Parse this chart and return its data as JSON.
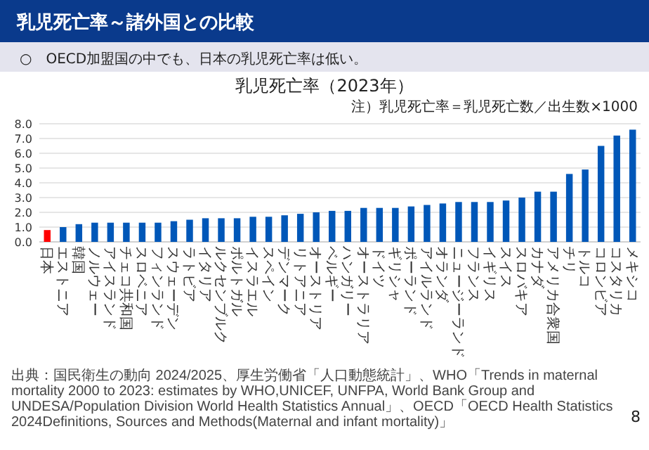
{
  "chart_data": {
    "type": "bar",
    "title": "乳児死亡率（2023年）",
    "categories": [
      "日本",
      "エストニア",
      "韓国",
      "ノルウェー",
      "アイスランド",
      "チェコ共和国",
      "スロベニア",
      "フィンランド",
      "スウェーデン",
      "ラトビア",
      "イタリア",
      "ルクセンブルク",
      "ポルトガル",
      "イスラエル",
      "スペイン",
      "デンマーク",
      "リトアニア",
      "オーストリア",
      "ベルギー",
      "ハンガリー",
      "オーストラリア",
      "ドイツ",
      "ギリシャ",
      "ポーランド",
      "アイルランド",
      "オランダ",
      "ニュージーランド",
      "フランス",
      "イギリス",
      "スイス",
      "スロバキア",
      "カナダ",
      "アメリカ合衆国",
      "チリ",
      "トルコ",
      "コロンビア",
      "コスタリカ",
      "メキシコ"
    ],
    "values": [
      0.8,
      1.0,
      1.2,
      1.3,
      1.3,
      1.3,
      1.3,
      1.3,
      1.4,
      1.5,
      1.6,
      1.6,
      1.6,
      1.7,
      1.7,
      1.8,
      1.9,
      2.0,
      2.1,
      2.1,
      2.3,
      2.3,
      2.3,
      2.4,
      2.5,
      2.6,
      2.7,
      2.7,
      2.7,
      2.8,
      3.0,
      3.4,
      3.4,
      4.6,
      4.9,
      6.5,
      7.2,
      7.6
    ],
    "colors": [
      "#ff0000",
      "#0057b8",
      "#0057b8",
      "#0057b8",
      "#0057b8",
      "#0057b8",
      "#0057b8",
      "#0057b8",
      "#0057b8",
      "#0057b8",
      "#0057b8",
      "#0057b8",
      "#0057b8",
      "#0057b8",
      "#0057b8",
      "#0057b8",
      "#0057b8",
      "#0057b8",
      "#0057b8",
      "#0057b8",
      "#0057b8",
      "#0057b8",
      "#0057b8",
      "#0057b8",
      "#0057b8",
      "#0057b8",
      "#0057b8",
      "#0057b8",
      "#0057b8",
      "#0057b8",
      "#0057b8",
      "#0057b8",
      "#0057b8",
      "#0057b8",
      "#0057b8",
      "#0057b8",
      "#0057b8",
      "#0057b8"
    ],
    "ylim": [
      0,
      8
    ],
    "yticks": [
      {
        "value": 0,
        "label": "0.0"
      },
      {
        "value": 1,
        "label": "1.0"
      },
      {
        "value": 2,
        "label": "2.0"
      },
      {
        "value": 3,
        "label": "3.0"
      },
      {
        "value": 4,
        "label": "4.0"
      },
      {
        "value": 5,
        "label": "5.0"
      },
      {
        "value": 6,
        "label": "6.0"
      },
      {
        "value": 7,
        "label": "7.0"
      },
      {
        "value": 8,
        "label": "8.0"
      }
    ],
    "grid": "y",
    "annotations": [
      "乳児死亡率～諸外国との比較",
      "○　OECD加盟国の中でも、日本の乳児死亡率は低い。",
      "注）乳児死亡率＝乳児死亡数／出生数×1000",
      "出典：国民衛生の動向 2024/2025、厚生労働省「人口動態統計」、WHO「Trends in maternal mortality 2000 to 2023: estimates by WHO,UNICEF, UNFPA, World Bank Group and UNDESA/Population Division World Health Statistics Annual」、OECD「OECD Health Statistics 2024Definitions, Sources and Methods(Maternal and infant mortality)」",
      "8"
    ]
  }
}
